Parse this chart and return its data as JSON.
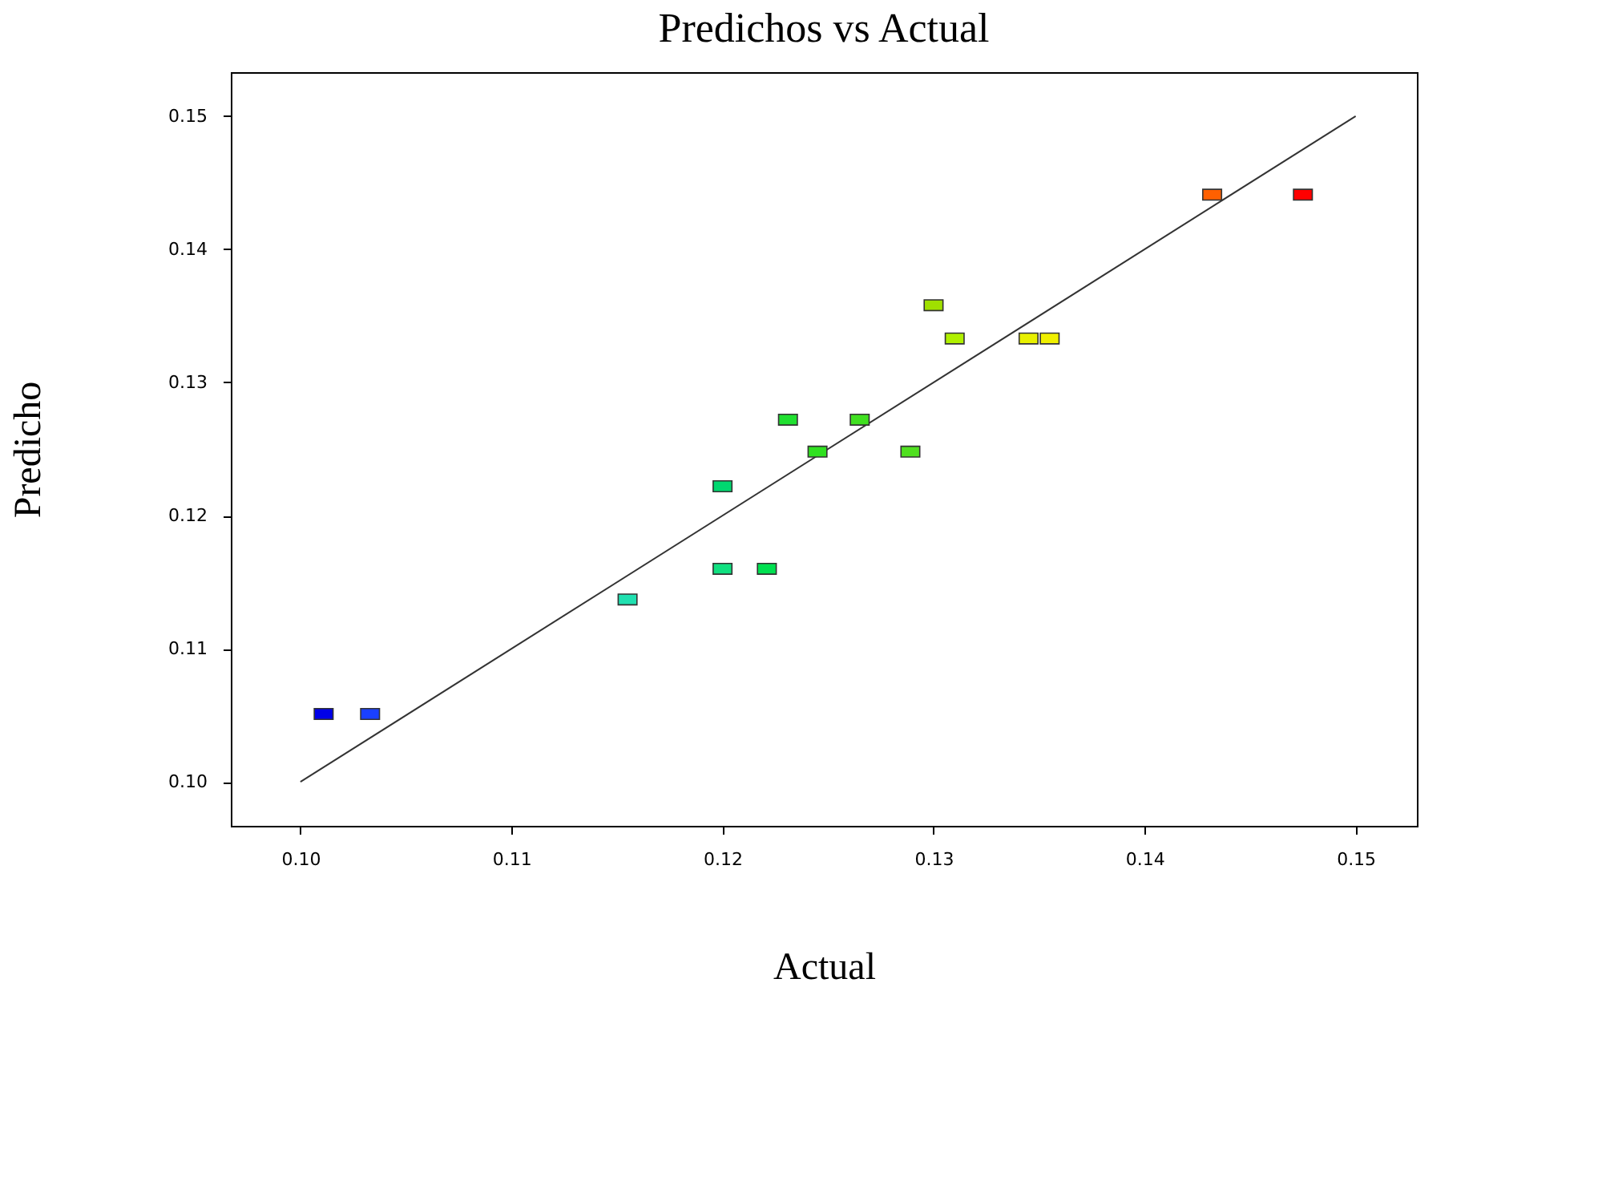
{
  "chart_data": {
    "type": "scatter",
    "title": "Predichos vs Actual",
    "xlabel": "Actual",
    "ylabel": "Predicho",
    "xlim": [
      0.0967,
      0.1529
    ],
    "ylim": [
      0.0967,
      0.1533
    ],
    "xticks": [
      {
        "value": 0.1,
        "label": "0.10"
      },
      0.11,
      0.12,
      0.13,
      0.14,
      0.15
    ],
    "yticks": [
      {
        "value": 0.1,
        "label": "0.10"
      },
      0.11,
      0.12,
      0.13,
      0.14,
      0.15
    ],
    "grid": false,
    "legend": false,
    "series": [
      {
        "marker": "square",
        "x": [
          0.1011,
          0.1033,
          0.1155,
          0.12,
          0.12,
          0.1221,
          0.1231,
          0.1245,
          0.1265,
          0.1289,
          0.13,
          0.131,
          0.1345,
          0.1355,
          0.1432,
          0.1475
        ],
        "values": [
          0.1051,
          0.1051,
          0.1137,
          0.1222,
          0.116,
          0.116,
          0.1272,
          0.1248,
          0.1272,
          0.1248,
          0.1358,
          0.1333,
          0.1333,
          0.1333,
          0.1441,
          0.1441
        ],
        "colors": [
          "#0000e8",
          "#1a40ff",
          "#20e0b0",
          "#00d870",
          "#10e080",
          "#00e050",
          "#20e030",
          "#30e020",
          "#40e020",
          "#50e020",
          "#a0e000",
          "#b0f000",
          "#e8f000",
          "#f0f000",
          "#ff6000",
          "#ff0000"
        ]
      },
      {
        "type": "line",
        "color": "#333333",
        "line_style": "solid",
        "x": [
          0.1,
          0.15
        ],
        "values": [
          0.1,
          0.15
        ]
      }
    ]
  }
}
